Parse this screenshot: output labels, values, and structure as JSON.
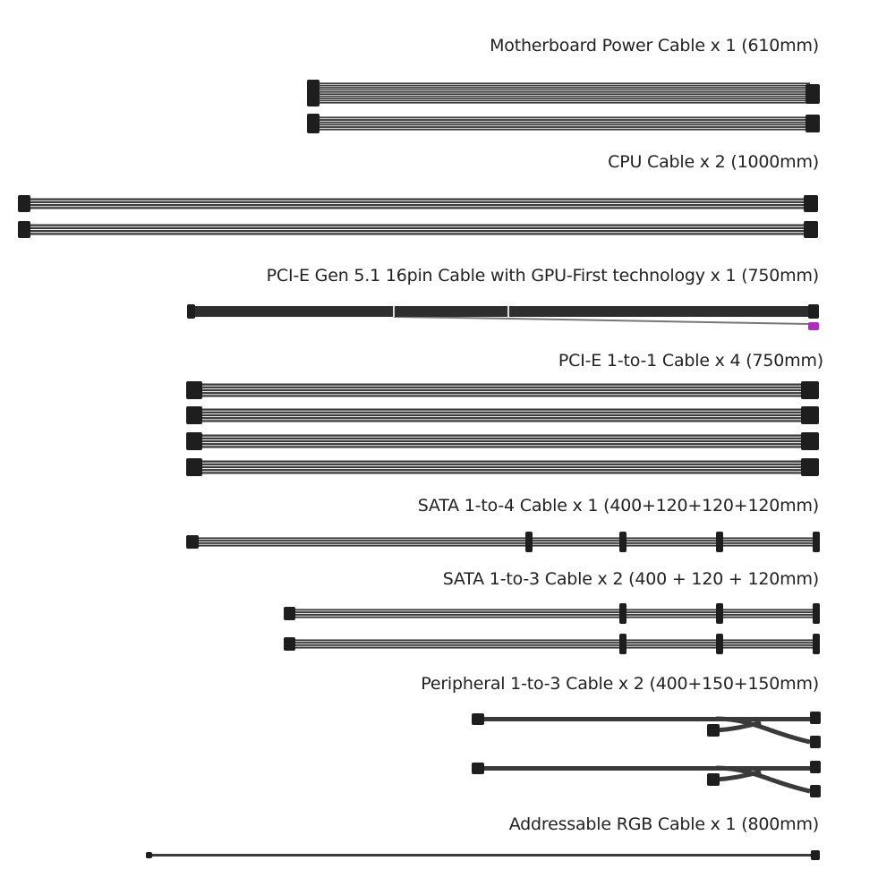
{
  "cables": [
    {
      "id": "motherboard",
      "label": "Motherboard Power  Cable x 1 (610mm)",
      "quantity": 1,
      "length_mm": "610"
    },
    {
      "id": "cpu",
      "label": "CPU Cable x 2 (1000mm)",
      "quantity": 2,
      "length_mm": "1000"
    },
    {
      "id": "pcie-16pin",
      "label": "PCI-E Gen 5.1 16pin Cable with GPU-First technology x 1 (750mm)",
      "quantity": 1,
      "length_mm": "750"
    },
    {
      "id": "pcie-1to1",
      "label": "PCI-E 1-to-1 Cable x 4 (750mm)",
      "quantity": 4,
      "length_mm": "750"
    },
    {
      "id": "sata-1to4",
      "label": "SATA 1-to-4 Cable x 1 (400+120+120+120mm)",
      "quantity": 1,
      "length_mm": "400+120+120+120"
    },
    {
      "id": "sata-1to3",
      "label": "SATA 1-to-3 Cable x 2 (400 + 120 + 120mm)",
      "quantity": 2,
      "length_mm": "400 + 120 + 120"
    },
    {
      "id": "peripheral",
      "label": "Peripheral 1-to-3 Cable x 2 (400+150+150mm)",
      "quantity": 2,
      "length_mm": "400+150+150"
    },
    {
      "id": "argb",
      "label": "Addressable RGB Cable x 1 (800mm)",
      "quantity": 1,
      "length_mm": "800"
    }
  ],
  "colors": {
    "cable": "#3a3a3a",
    "connector": "#1e1e1e",
    "sense_connector": "#b02cc0",
    "sleeve_highlight": "#9a9a9a"
  }
}
